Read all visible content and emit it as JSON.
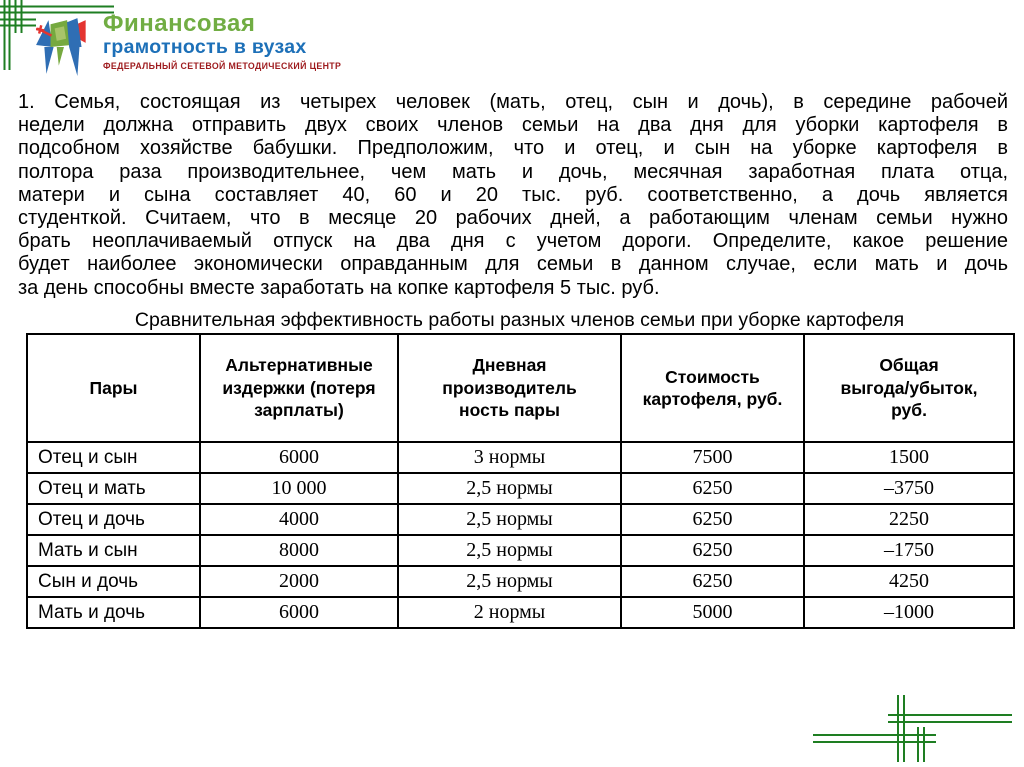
{
  "colors": {
    "decor_green": "#1e7e22",
    "logo_title_green": "#71ad43",
    "logo_title_blue": "#1d70b8",
    "logo_subtitle_red": "#9e1b1e"
  },
  "logo": {
    "title_line1": "Финансовая",
    "title_line2": "грамотность в вузах",
    "subtitle": "ФЕДЕРАЛЬНЫЙ СЕТЕВОЙ МЕТОДИЧЕСКИЙ ЦЕНТР"
  },
  "problem": {
    "lines": [
      "1. Семья, состоящая из четырех человек (мать, отец, сын и дочь), в середине рабочей",
      "недели должна отправить двух своих членов семьи на два дня для уборки картофеля в",
      "подсобном хозяйстве бабушки. Предположим, что и отец, и сын на уборке картофеля в",
      "полтора раза производительнее, чем мать и дочь, месячная заработная плата отца,",
      "матери и сына составляет 40, 60 и 20 тыс. руб. соответственно, а дочь является",
      "студенткой. Считаем, что в месяце 20 рабочих дней, а работающим членам семьи нужно",
      "брать неоплачиваемый отпуск на два дня с учетом дороги. Определите, какое решение",
      "будет наиболее экономически оправданным для семьи в данном случае, если мать и дочь",
      "за день способны вместе заработать на копке картофеля 5 тыс. руб."
    ]
  },
  "table": {
    "title": "Сравнительная эффективность работы разных членов семьи при уборке картофеля",
    "headers": [
      "Пары",
      "Альтернативные\nиздержки (потеря\nзарплаты)",
      "Дневная\nпроизводитель\nность пары",
      "Стоимость\nкартофеля, руб.",
      "Общая\nвыгода/убыток,\nруб."
    ],
    "rows": [
      [
        "Отец и сын",
        "6000",
        "3 нормы",
        "7500",
        "1500"
      ],
      [
        "Отец и мать",
        "10 000",
        "2,5 нормы",
        "6250",
        "–3750"
      ],
      [
        "Отец и дочь",
        "4000",
        "2,5 нормы",
        "6250",
        "2250"
      ],
      [
        "Мать и сын",
        "8000",
        "2,5 нормы",
        "6250",
        "–1750"
      ],
      [
        "Сын и дочь",
        "2000",
        "2,5 нормы",
        "6250",
        "4250"
      ],
      [
        "Мать и дочь",
        "6000",
        "2 нормы",
        "5000",
        "–1000"
      ]
    ]
  }
}
